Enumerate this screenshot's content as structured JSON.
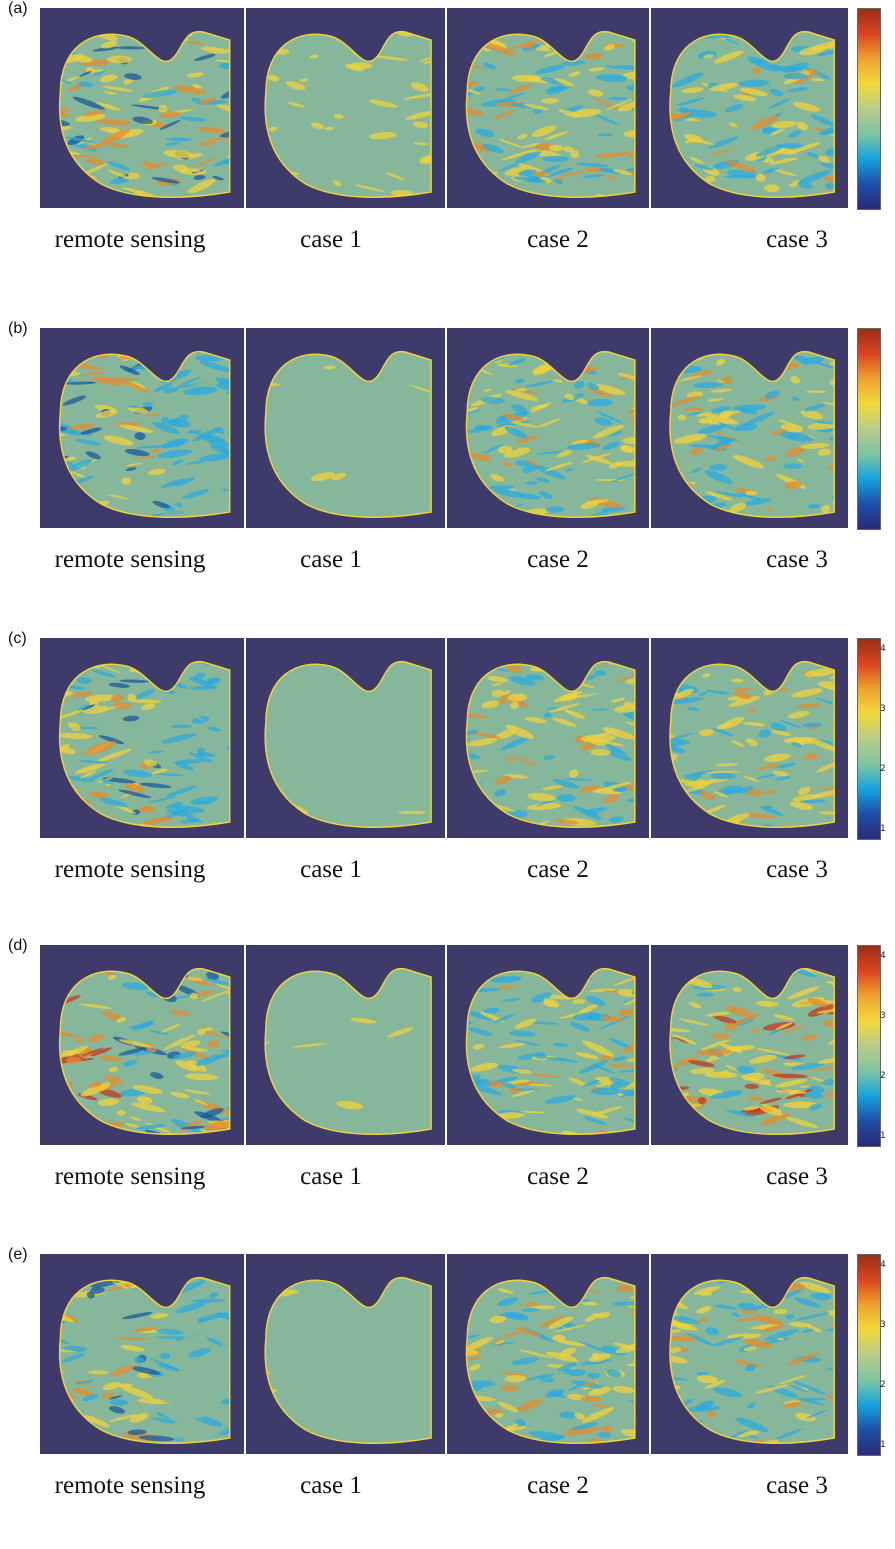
{
  "figure": {
    "rows": [
      {
        "label": "(a)",
        "captions": [
          "remote sensing",
          "case 1",
          "case 2",
          "case 3"
        ],
        "colorbar_ticks": []
      },
      {
        "label": "(b)",
        "captions": [
          "remote sensing",
          "case 1",
          "case 2",
          "case 3"
        ],
        "colorbar_ticks": []
      },
      {
        "label": "(c)",
        "captions": [
          "remote sensing",
          "case 1",
          "case 2",
          "case 3"
        ],
        "colorbar_ticks": [
          "4",
          "3",
          "2",
          "1"
        ]
      },
      {
        "label": "(d)",
        "captions": [
          "remote sensing",
          "case 1",
          "case 2",
          "case 3"
        ],
        "colorbar_ticks": [
          "4",
          "3",
          "2",
          "1"
        ]
      },
      {
        "label": "(e)",
        "captions": [
          "remote sensing",
          "case 1",
          "case 2",
          "case 3"
        ],
        "colorbar_ticks": [
          "4",
          "3",
          "2",
          "1"
        ]
      }
    ]
  },
  "colors": {
    "background": "#3e3a6a",
    "base_green": "#86b79a",
    "yellow": "#f2d23a",
    "orange": "#e58b2c",
    "red": "#c2371e",
    "light_blue": "#2aa9e0",
    "dark_blue": "#1a5a9e",
    "colorbar_gradient": [
      "#2a2a7a",
      "#1f4fa6",
      "#16a3de",
      "#7fc4a2",
      "#b9cb8a",
      "#f3d93b",
      "#f0a230",
      "#d9461f",
      "#9a2e1a"
    ]
  }
}
